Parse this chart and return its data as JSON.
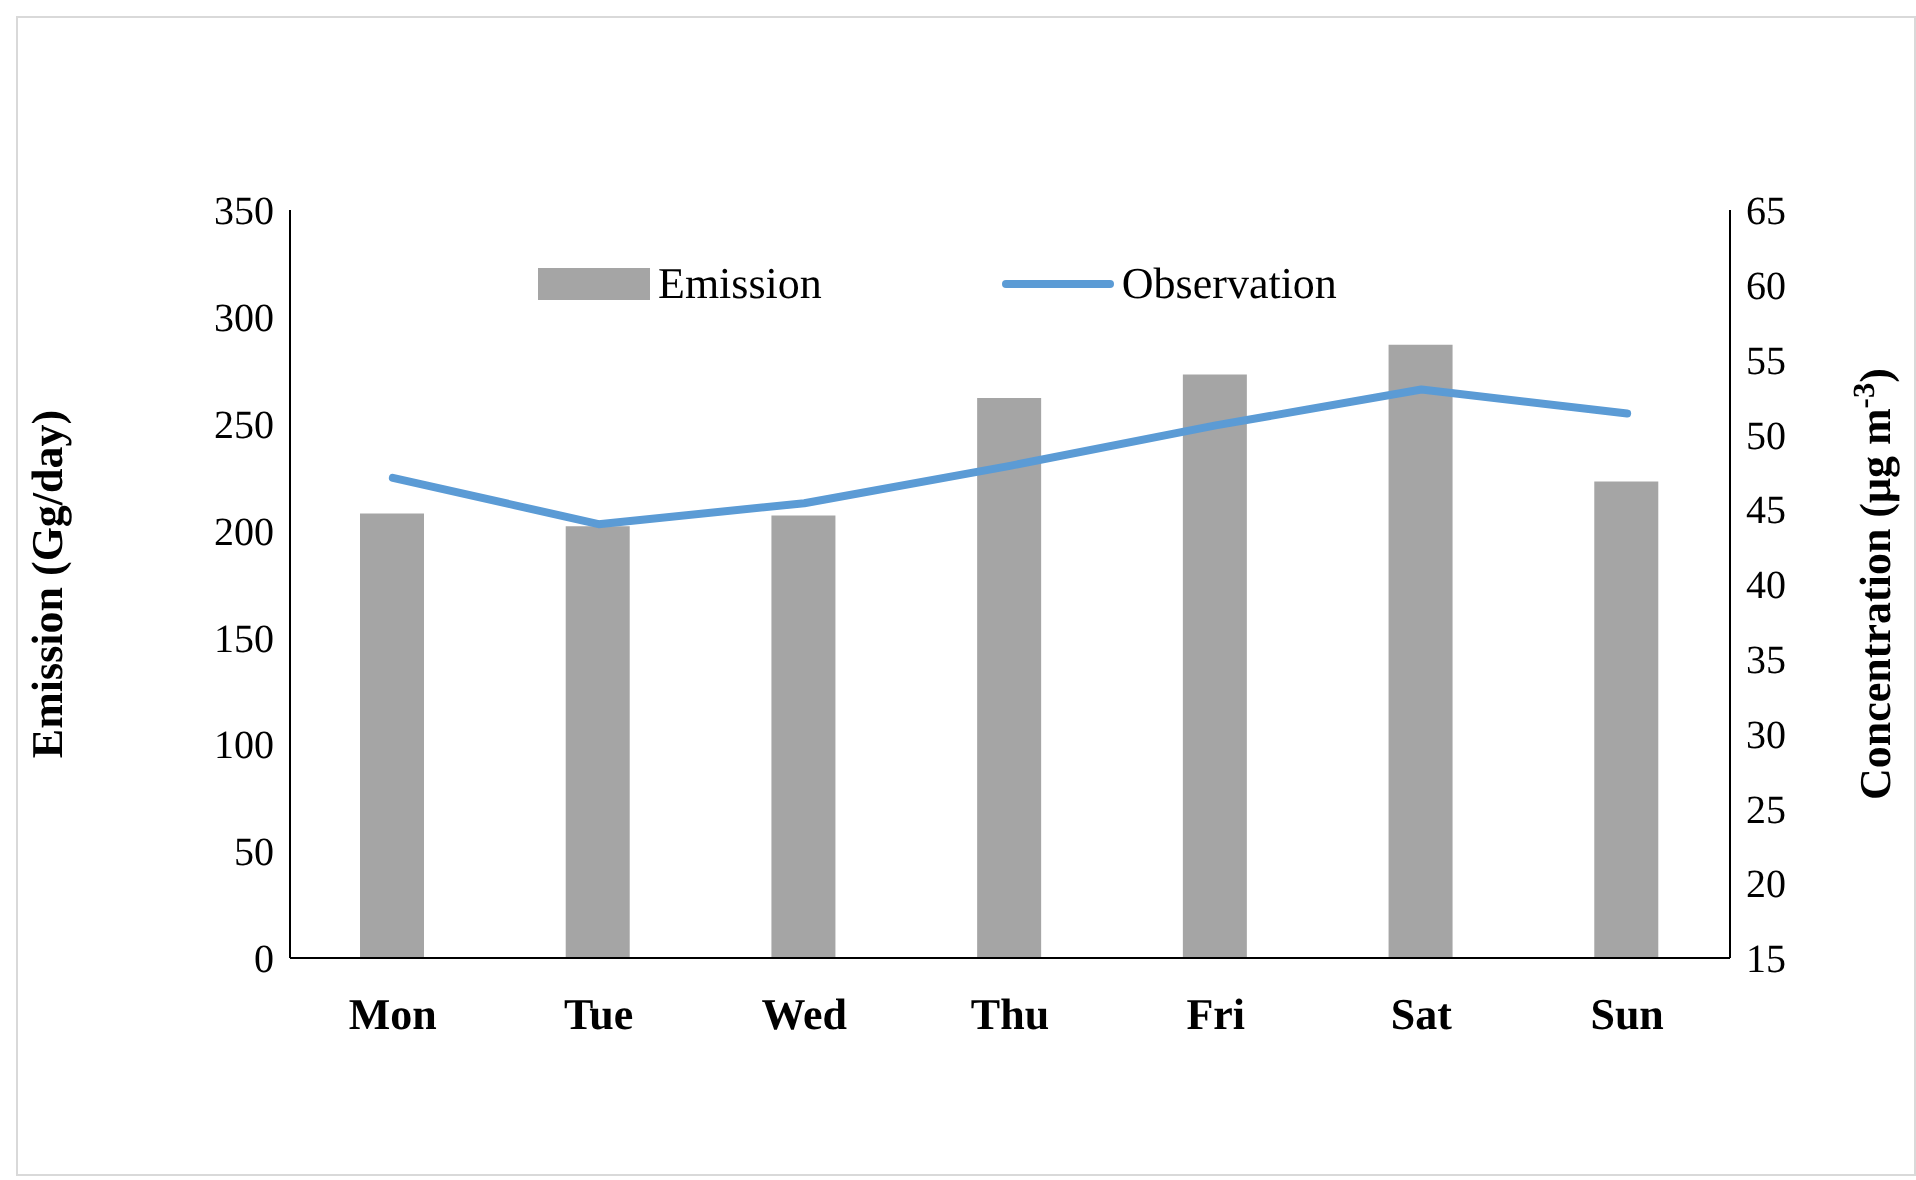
{
  "chart_data": {
    "type": "bar",
    "categories": [
      "Mon",
      "Tue",
      "Wed",
      "Thu",
      "Fri",
      "Sat",
      "Sun"
    ],
    "ylabel": "Emission (Gg/day)",
    "y2label": "Concentration (μg m$^{-3}$)",
    "ylim": [
      0,
      350
    ],
    "yticks": [
      0,
      50,
      100,
      150,
      200,
      250,
      300,
      350
    ],
    "y2lim": [
      15,
      65
    ],
    "y2ticks": [
      15,
      20,
      25,
      30,
      35,
      40,
      45,
      50,
      55,
      60,
      65
    ],
    "legend": "top",
    "grid": false,
    "series": [
      {
        "name": "Emission",
        "color": "#a5a5a5",
        "values": [
          208,
          202,
          207,
          262,
          273,
          287,
          223
        ]
      },
      {
        "name": "Observation",
        "type": "line",
        "axis": "y2",
        "color": "#5b9bd5",
        "values": [
          47.1,
          44.0,
          45.4,
          47.9,
          50.6,
          53.0,
          51.4
        ]
      }
    ]
  }
}
